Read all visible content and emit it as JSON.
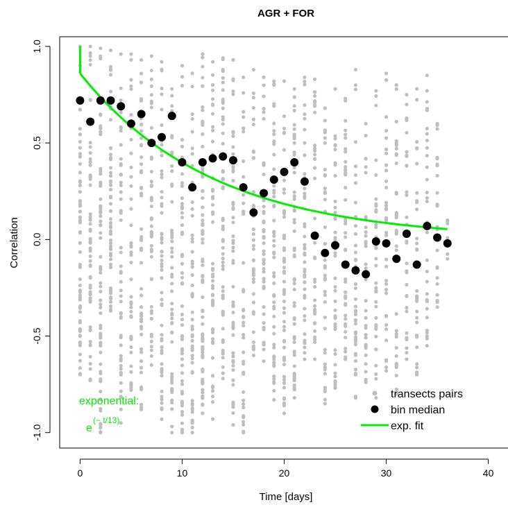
{
  "chart_data": {
    "type": "scatter",
    "title": "AGR + FOR",
    "xlabel": "Time [days]",
    "ylabel": "Correlation",
    "xlim": [
      -2,
      42
    ],
    "ylim": [
      -1.08,
      1.05
    ],
    "x_ticks": [
      "0",
      "10",
      "20",
      "30",
      "40"
    ],
    "y_ticks": [
      "-1.0",
      "-0.5",
      "0.0",
      "0.5",
      "1.0"
    ],
    "grid": false,
    "legend_position": "bottom-right",
    "legend": [
      {
        "label": "transects pairs",
        "color": "#bebebe",
        "marker": "small-circle"
      },
      {
        "label": "bin median",
        "color": "#000000",
        "marker": "large-circle"
      },
      {
        "label": "exp. fit",
        "color": "#00ee00",
        "marker": "line"
      }
    ],
    "annotation": {
      "line1": "exponential:",
      "base": "e",
      "exponent": "(− t/13)",
      "color": "#00ee00"
    },
    "series": [
      {
        "name": "transects pairs",
        "color": "#bebebe",
        "columns": [
          {
            "x": 0,
            "y_min": -0.7,
            "y_max": 1.0,
            "density": 60
          },
          {
            "x": 1,
            "y_min": -0.73,
            "y_max": 1.0,
            "density": 55
          },
          {
            "x": 2,
            "y_min": -1.0,
            "y_max": 0.99,
            "density": 70
          },
          {
            "x": 3,
            "y_min": -0.37,
            "y_max": 0.98,
            "density": 55
          },
          {
            "x": 4,
            "y_min": -0.95,
            "y_max": 0.96,
            "density": 50
          },
          {
            "x": 5,
            "y_min": -0.78,
            "y_max": 0.96,
            "density": 45
          },
          {
            "x": 6,
            "y_min": -0.88,
            "y_max": 0.93,
            "density": 50
          },
          {
            "x": 7,
            "y_min": -0.65,
            "y_max": 0.95,
            "density": 45
          },
          {
            "x": 8,
            "y_min": -0.93,
            "y_max": 0.92,
            "density": 60
          },
          {
            "x": 9,
            "y_min": -1.0,
            "y_max": 0.78,
            "density": 50
          },
          {
            "x": 10,
            "y_min": -1.0,
            "y_max": 0.9,
            "density": 55
          },
          {
            "x": 11,
            "y_min": -1.0,
            "y_max": 0.86,
            "density": 50
          },
          {
            "x": 12,
            "y_min": -0.9,
            "y_max": 0.96,
            "density": 70
          },
          {
            "x": 13,
            "y_min": -0.93,
            "y_max": 0.92,
            "density": 55
          },
          {
            "x": 14,
            "y_min": -0.72,
            "y_max": 0.94,
            "density": 55
          },
          {
            "x": 15,
            "y_min": -0.96,
            "y_max": 0.93,
            "density": 55
          },
          {
            "x": 16,
            "y_min": -1.0,
            "y_max": 0.84,
            "density": 40
          },
          {
            "x": 17,
            "y_min": -0.6,
            "y_max": 0.88,
            "density": 40
          },
          {
            "x": 18,
            "y_min": -0.63,
            "y_max": 0.84,
            "density": 45
          },
          {
            "x": 19,
            "y_min": -0.83,
            "y_max": 0.82,
            "density": 55
          },
          {
            "x": 20,
            "y_min": -0.9,
            "y_max": 0.82,
            "density": 55
          },
          {
            "x": 21,
            "y_min": -0.82,
            "y_max": 0.78,
            "density": 55
          },
          {
            "x": 22,
            "y_min": -0.62,
            "y_max": 0.84,
            "density": 45
          },
          {
            "x": 23,
            "y_min": -0.62,
            "y_max": 0.83,
            "density": 40
          },
          {
            "x": 24,
            "y_min": -0.85,
            "y_max": 0.68,
            "density": 40
          },
          {
            "x": 25,
            "y_min": -0.77,
            "y_max": 0.78,
            "density": 40
          },
          {
            "x": 26,
            "y_min": -0.62,
            "y_max": 0.73,
            "density": 40
          },
          {
            "x": 27,
            "y_min": -0.82,
            "y_max": 0.88,
            "density": 40
          },
          {
            "x": 28,
            "y_min": -0.74,
            "y_max": 0.6,
            "density": 35
          },
          {
            "x": 29,
            "y_min": -0.82,
            "y_max": 0.77,
            "density": 35
          },
          {
            "x": 30,
            "y_min": -0.68,
            "y_max": 0.86,
            "density": 35
          },
          {
            "x": 31,
            "y_min": -0.8,
            "y_max": 0.8,
            "density": 35
          },
          {
            "x": 32,
            "y_min": -0.62,
            "y_max": 0.75,
            "density": 30
          },
          {
            "x": 33,
            "y_min": -0.7,
            "y_max": 0.78,
            "density": 30
          },
          {
            "x": 34,
            "y_min": -0.55,
            "y_max": 0.85,
            "density": 30
          },
          {
            "x": 35,
            "y_min": -0.35,
            "y_max": 0.6,
            "density": 20
          },
          {
            "x": 36,
            "y_min": -0.1,
            "y_max": 0.1,
            "density": 6
          }
        ]
      },
      {
        "name": "bin median",
        "color": "#000000",
        "x": [
          0,
          1,
          2,
          3,
          4,
          5,
          6,
          7,
          8,
          9,
          10,
          11,
          12,
          13,
          14,
          15,
          16,
          17,
          18,
          19,
          20,
          21,
          22,
          23,
          24,
          25,
          26,
          27,
          28,
          29,
          30,
          31,
          32,
          33,
          34,
          35,
          36
        ],
        "y": [
          0.72,
          0.61,
          0.72,
          0.72,
          0.69,
          0.6,
          0.65,
          0.5,
          0.53,
          0.64,
          0.4,
          0.27,
          0.4,
          0.42,
          0.43,
          0.41,
          0.27,
          0.14,
          0.24,
          0.31,
          0.35,
          0.4,
          0.3,
          0.02,
          -0.07,
          -0.03,
          -0.13,
          -0.16,
          -0.18,
          -0.01,
          -0.02,
          -0.1,
          0.03,
          -0.13,
          0.07,
          0.01,
          -0.02
        ]
      },
      {
        "name": "exp. fit",
        "color": "#00ee00",
        "type": "line",
        "formula": "0.86 * exp(-t/13)",
        "x": [
          0,
          2,
          4,
          6,
          8,
          10,
          12,
          14,
          16,
          18,
          20,
          22,
          24,
          26,
          28,
          30,
          32,
          34,
          36
        ],
        "y": [
          0.86,
          0.74,
          0.63,
          0.54,
          0.46,
          0.4,
          0.34,
          0.29,
          0.25,
          0.22,
          0.19,
          0.16,
          0.14,
          0.12,
          0.1,
          0.09,
          0.07,
          0.06,
          0.05
        ]
      }
    ]
  }
}
